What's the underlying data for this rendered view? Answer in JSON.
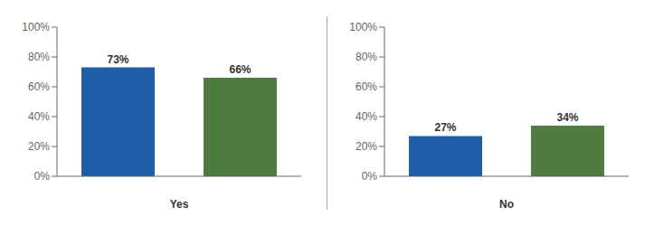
{
  "chart_data": [
    {
      "type": "bar",
      "xlabel": "Yes",
      "categories": [
        null,
        null
      ],
      "values": [
        73,
        66
      ],
      "value_labels": [
        "73%",
        "66%"
      ],
      "colors": [
        "#1F5EA8",
        "#4E7C3F"
      ],
      "data_labels": true,
      "ylim": [
        0,
        100
      ],
      "yticks": [
        {
          "value": 0,
          "label": "0%"
        },
        {
          "value": 20,
          "label": "20%"
        },
        {
          "value": 40,
          "label": "40%"
        },
        {
          "value": 60,
          "label": "60%"
        },
        {
          "value": 80,
          "label": "80%"
        },
        {
          "value": 100,
          "label": "100%"
        }
      ],
      "grid": false,
      "tick_labels": "y"
    },
    {
      "type": "bar",
      "xlabel": "No",
      "categories": [
        null,
        null
      ],
      "values": [
        27,
        34
      ],
      "value_labels": [
        "27%",
        "34%"
      ],
      "colors": [
        "#1F5EA8",
        "#4E7C3F"
      ],
      "data_labels": true,
      "ylim": [
        0,
        100
      ],
      "yticks": [
        {
          "value": 0,
          "label": "0%"
        },
        {
          "value": 20,
          "label": "20%"
        },
        {
          "value": 40,
          "label": "40%"
        },
        {
          "value": 60,
          "label": "60%"
        },
        {
          "value": 80,
          "label": "80%"
        },
        {
          "value": 100,
          "label": "100%"
        }
      ],
      "grid": false,
      "tick_labels": "y"
    }
  ]
}
